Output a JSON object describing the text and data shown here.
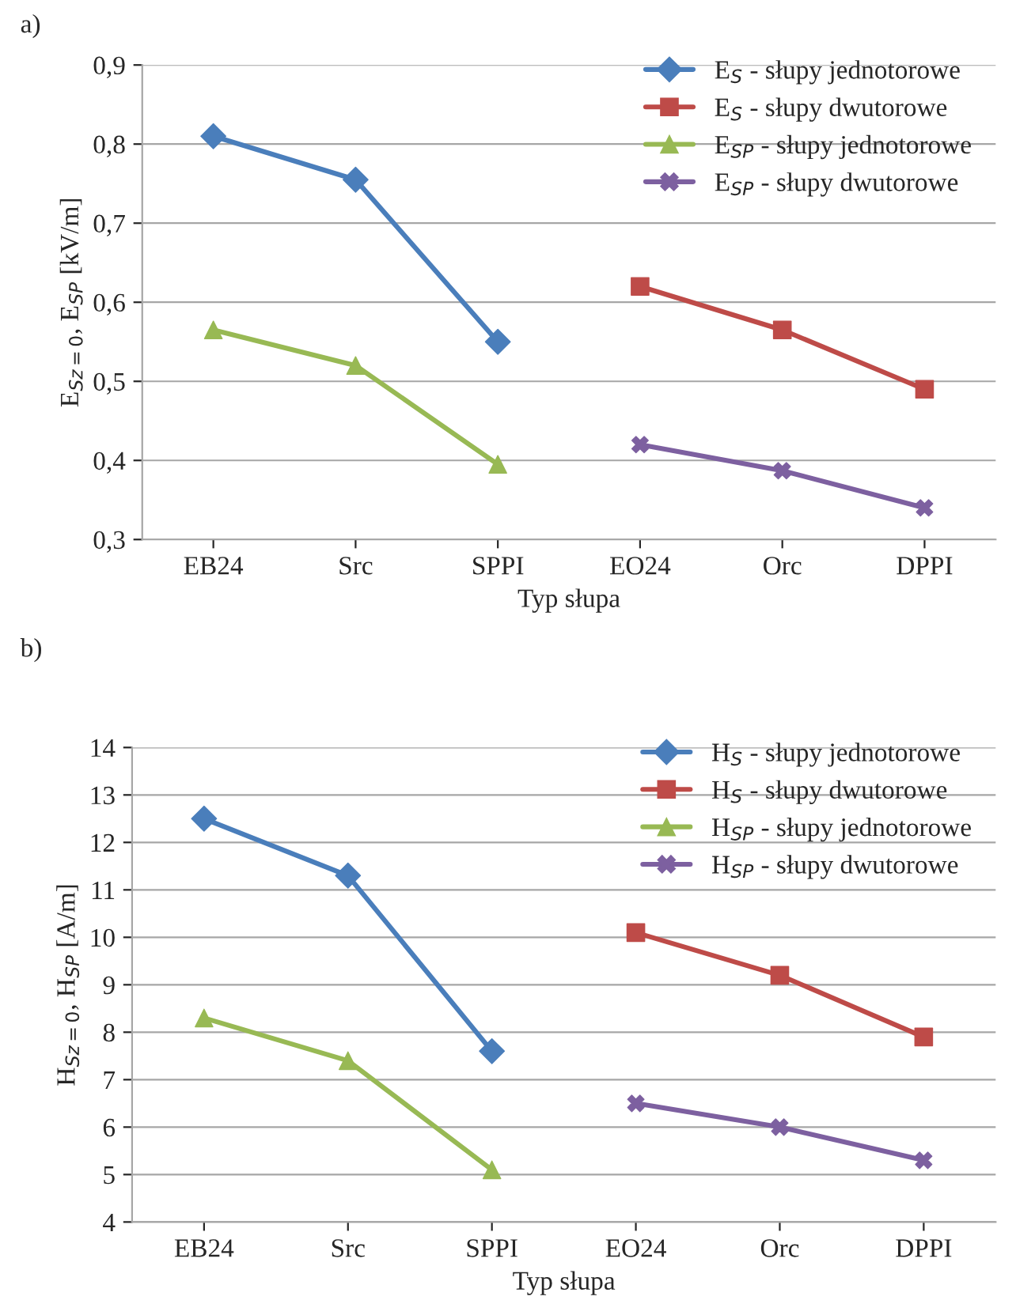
{
  "chart_data": [
    {
      "type": "line",
      "annotations": [
        "a)"
      ],
      "xlabel": "Typ słupa",
      "ylabel": "E$_{Sz=0}$, E$_{SP}$ [kV/m]",
      "categories": [
        "EB24",
        "Src",
        "SPPI",
        "EO24",
        "Orc",
        "DPPI"
      ],
      "series": [
        {
          "name": "E$_{S}$ - słupy jednotorowe",
          "color": "#4a7ebb",
          "marker": "diamond",
          "values": [
            0.81,
            0.755,
            0.55,
            null,
            null,
            null
          ]
        },
        {
          "name": "E$_{S}$ - słupy dwutorowe",
          "color": "#be4b48",
          "marker": "square",
          "values": [
            null,
            null,
            null,
            0.62,
            0.565,
            0.49
          ]
        },
        {
          "name": "E$_{SP}$ - słupy jednotorowe",
          "color": "#98b954",
          "marker": "triangle",
          "values": [
            0.565,
            0.52,
            0.395,
            null,
            null,
            null
          ]
        },
        {
          "name": "E$_{SP}$ - słupy dwutorowe",
          "color": "#7d60a0",
          "marker": "cross",
          "values": [
            null,
            null,
            null,
            0.42,
            0.387,
            0.34
          ]
        }
      ],
      "ylim": [
        0.3,
        0.9
      ],
      "yticks": [
        {
          "value": 0.3,
          "label": "0,3"
        },
        {
          "value": 0.4,
          "label": "0,4"
        },
        {
          "value": 0.5,
          "label": "0,5"
        },
        {
          "value": 0.6,
          "label": "0,6"
        },
        {
          "value": 0.7,
          "label": "0,7"
        },
        {
          "value": 0.8,
          "label": "0,8"
        },
        {
          "value": 0.9,
          "label": "0,9"
        }
      ],
      "grid": "y",
      "legend": "top right",
      "line_style": "solid"
    },
    {
      "type": "line",
      "annotations": [
        "b)"
      ],
      "xlabel": "Typ słupa",
      "ylabel": "H$_{Sz=0}$, H$_{SP}$ [A/m]",
      "categories": [
        "EB24",
        "Src",
        "SPPI",
        "EO24",
        "Orc",
        "DPPI"
      ],
      "series": [
        {
          "name": "H$_{S}$ - słupy jednotorowe",
          "color": "#4a7ebb",
          "marker": "diamond",
          "values": [
            12.5,
            11.3,
            7.6,
            null,
            null,
            null
          ]
        },
        {
          "name": "H$_{S}$ - słupy dwutorowe",
          "color": "#be4b48",
          "marker": "square",
          "values": [
            null,
            null,
            null,
            10.1,
            9.2,
            7.9
          ]
        },
        {
          "name": "H$_{SP}$ - słupy jednotorowe",
          "color": "#98b954",
          "marker": "triangle",
          "values": [
            8.3,
            7.4,
            5.1,
            null,
            null,
            null
          ]
        },
        {
          "name": "H$_{SP}$ - słupy dwutorowe",
          "color": "#7d60a0",
          "marker": "cross",
          "values": [
            null,
            null,
            null,
            6.5,
            6.0,
            5.3
          ]
        }
      ],
      "ylim": [
        4,
        14
      ],
      "yticks": [
        4,
        5,
        6,
        7,
        8,
        9,
        10,
        11,
        12,
        13,
        14
      ],
      "grid": "y",
      "legend": "top right",
      "line_style": "solid"
    }
  ]
}
